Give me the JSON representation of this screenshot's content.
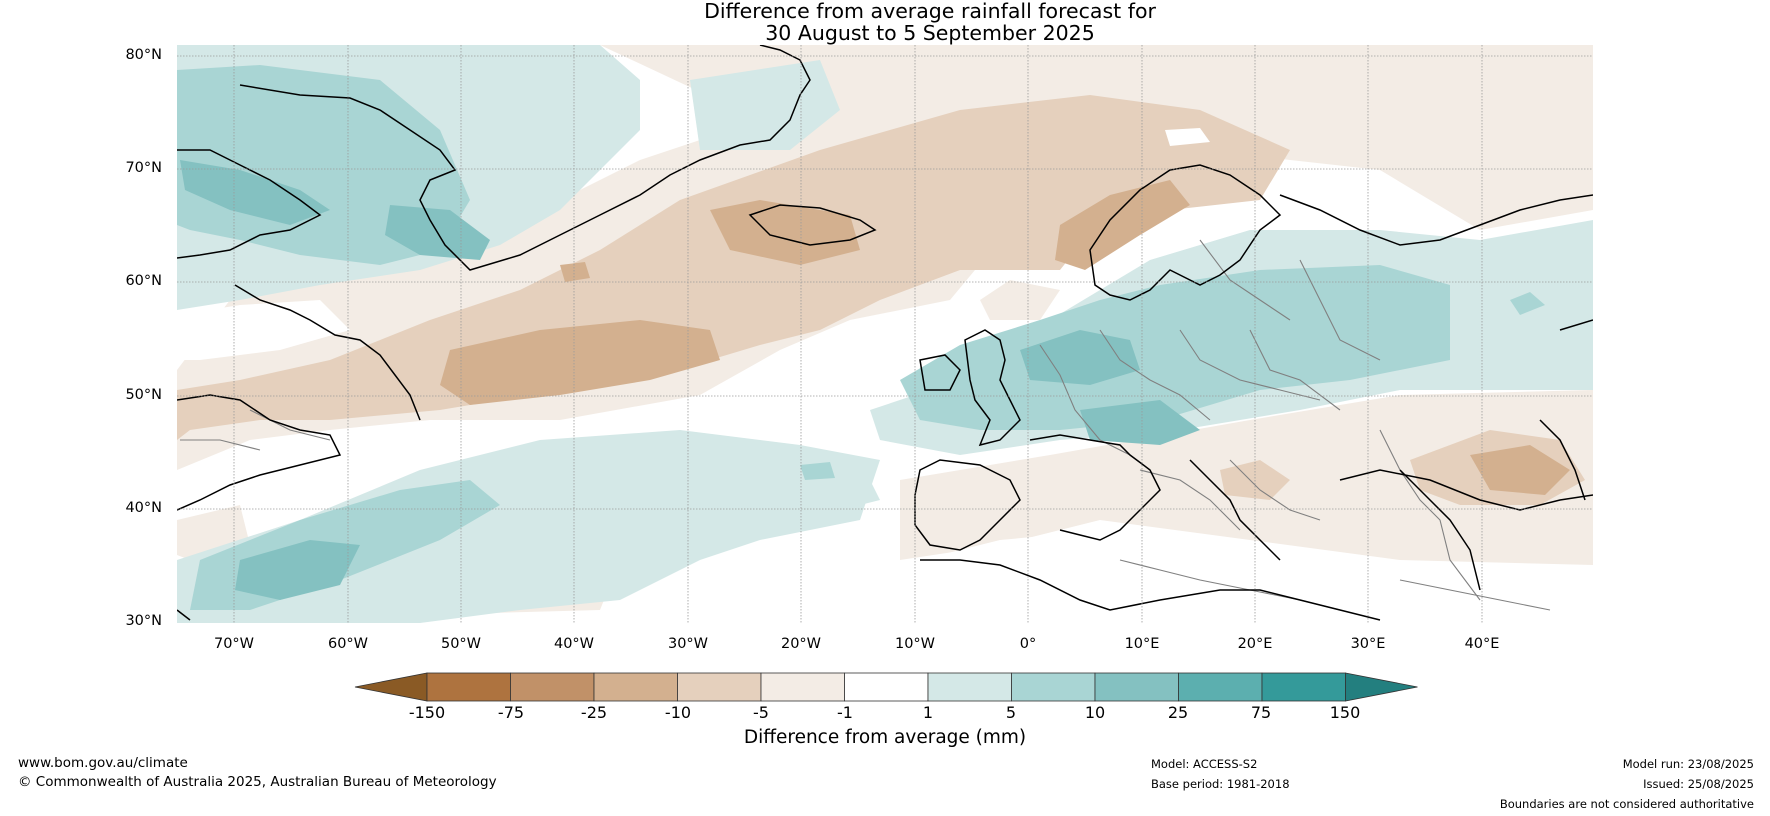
{
  "title_line1": "Difference from average rainfall forecast for",
  "title_line2": "30 August to 5 September 2025",
  "lat_labels": [
    "80°N",
    "70°N",
    "60°N",
    "50°N",
    "40°N",
    "30°N"
  ],
  "lon_labels": [
    "70°W",
    "60°W",
    "50°W",
    "40°W",
    "30°W",
    "20°W",
    "10°W",
    "0°",
    "10°E",
    "20°E",
    "30°E",
    "40°E"
  ],
  "colorbar": {
    "title": "Difference from average (mm)",
    "tick_labels": [
      "-150",
      "-75",
      "-25",
      "-10",
      "-5",
      "-1",
      "1",
      "5",
      "10",
      "25",
      "75",
      "150"
    ],
    "colors": [
      "#8a5a25",
      "#ae733f",
      "#c19168",
      "#d3b08f",
      "#e5d0bd",
      "#f3ece5",
      "#ffffff",
      "#d4e8e7",
      "#a9d5d4",
      "#84c1c1",
      "#5cafaf",
      "#349a9a",
      "#237f7f"
    ]
  },
  "map_colors": {
    "ocean_base": "#ffffff",
    "coast": "#000000",
    "border": "#808080",
    "grid": "#9a9a9a"
  },
  "footer": {
    "website": "www.bom.gov.au/climate",
    "copyright": "© Commonwealth of Australia 2025, Australian Bureau of Meteorology",
    "model": "Model: ACCESS-S2",
    "base_period": "Base period: 1981-2018",
    "model_run": "Model run: 23/08/2025",
    "issued": "Issued: 25/08/2025",
    "disclaimer": "Boundaries are not considered authoritative"
  }
}
